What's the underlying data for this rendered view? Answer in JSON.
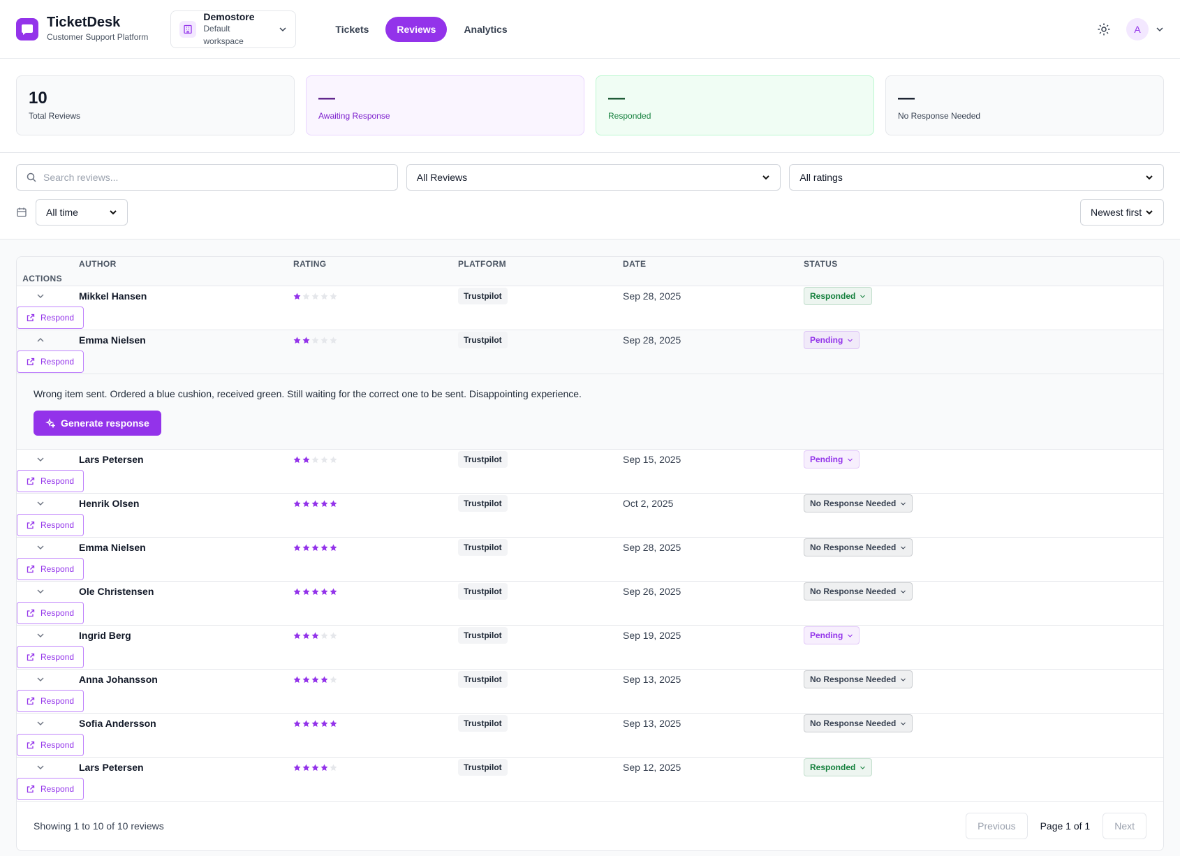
{
  "header": {
    "brand": "TicketDesk",
    "subtitle": "Customer Support Platform",
    "workspace": {
      "name": "Demostore",
      "caption": "Default workspace"
    },
    "nav": [
      "Tickets",
      "Reviews",
      "Analytics"
    ],
    "active_nav": 1,
    "avatar": "A"
  },
  "stats": [
    {
      "value": "10",
      "label": "Total Reviews"
    },
    {
      "value": "—",
      "label": "Awaiting Response"
    },
    {
      "value": "—",
      "label": "Responded"
    },
    {
      "value": "—",
      "label": "No Response Needed"
    }
  ],
  "filters": {
    "search_placeholder": "Search reviews...",
    "review_filter": "All Reviews",
    "rating_filter": "All ratings",
    "time_filter": "All time",
    "sort": "Newest first"
  },
  "table": {
    "columns": [
      "AUTHOR",
      "RATING",
      "PLATFORM",
      "DATE",
      "STATUS",
      "ACTIONS"
    ],
    "max_rating": 5,
    "action": "Respond",
    "generate_label": "Generate response",
    "rows": [
      {
        "author": "Mikkel Hansen",
        "rating": 1,
        "platform": "Trustpilot",
        "date": "Sep 28, 2025",
        "status": "Responded",
        "status_color": "#15803d"
      },
      {
        "author": "Emma Nielsen",
        "rating": 2,
        "platform": "Trustpilot",
        "date": "Sep 28, 2025",
        "status": "Pending",
        "status_color": "#9333ea",
        "review_text": "Wrong item sent. Ordered a blue cushion, received green. Still waiting for the correct one to be sent. Disappointing experience."
      },
      {
        "author": "Lars Petersen",
        "rating": 2,
        "platform": "Trustpilot",
        "date": "Sep 15, 2025",
        "status": "Pending",
        "status_color": "#9333ea"
      },
      {
        "author": "Henrik Olsen",
        "rating": 5,
        "platform": "Trustpilot",
        "date": "Oct 2, 2025",
        "status": "No Response Needed",
        "status_color": "#374151"
      },
      {
        "author": "Emma Nielsen",
        "rating": 5,
        "platform": "Trustpilot",
        "date": "Sep 28, 2025",
        "status": "No Response Needed",
        "status_color": "#374151"
      },
      {
        "author": "Ole Christensen",
        "rating": 5,
        "platform": "Trustpilot",
        "date": "Sep 26, 2025",
        "status": "No Response Needed",
        "status_color": "#374151"
      },
      {
        "author": "Ingrid Berg",
        "rating": 3,
        "platform": "Trustpilot",
        "date": "Sep 19, 2025",
        "status": "Pending",
        "status_color": "#9333ea"
      },
      {
        "author": "Anna Johansson",
        "rating": 4,
        "platform": "Trustpilot",
        "date": "Sep 13, 2025",
        "status": "No Response Needed",
        "status_color": "#374151"
      },
      {
        "author": "Sofia Andersson",
        "rating": 5,
        "platform": "Trustpilot",
        "date": "Sep 13, 2025",
        "status": "No Response Needed",
        "status_color": "#374151"
      },
      {
        "author": "Lars Petersen",
        "rating": 4,
        "platform": "Trustpilot",
        "date": "Sep 12, 2025",
        "status": "Responded",
        "status_color": "#15803d"
      }
    ]
  },
  "pagination": {
    "summary": "Showing 1 to 10 of 10 reviews",
    "previous": "Previous",
    "page": "Page 1 of 1",
    "next": "Next"
  }
}
